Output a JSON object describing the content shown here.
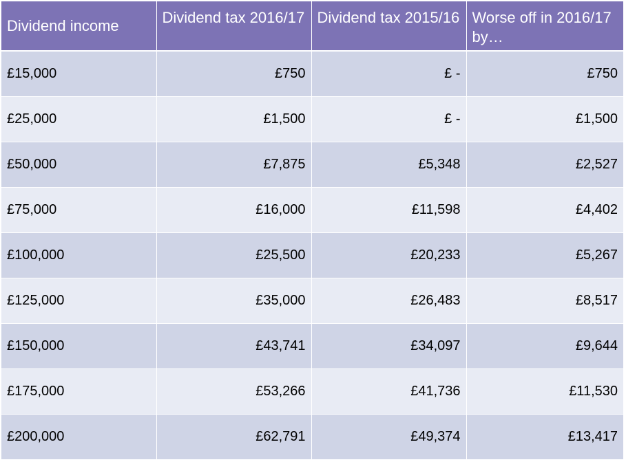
{
  "table": {
    "headers": [
      "Dividend income",
      "Dividend tax 2016/17",
      "Dividend tax 2015/16",
      "Worse off in 2016/17 by…"
    ],
    "rows": [
      [
        "£15,000",
        "£750",
        "£ -",
        "£750"
      ],
      [
        "£25,000",
        "£1,500",
        "£ -",
        "£1,500"
      ],
      [
        "£50,000",
        "£7,875",
        "£5,348",
        "£2,527"
      ],
      [
        "£75,000",
        "£16,000",
        "£11,598",
        "£4,402"
      ],
      [
        "£100,000",
        "£25,500",
        "£20,233",
        "£5,267"
      ],
      [
        "£125,000",
        "£35,000",
        "£26,483",
        "£8,517"
      ],
      [
        "£150,000",
        "£43,741",
        "£34,097",
        "£9,644"
      ],
      [
        "£175,000",
        "£53,266",
        "£41,736",
        "£11,530"
      ],
      [
        "£200,000",
        "£62,791",
        "£49,374",
        "£13,417"
      ]
    ]
  },
  "colors": {
    "header_bg": "#7d73b5",
    "row_dark": "#cfd4e6",
    "row_light": "#e8ebf4"
  }
}
